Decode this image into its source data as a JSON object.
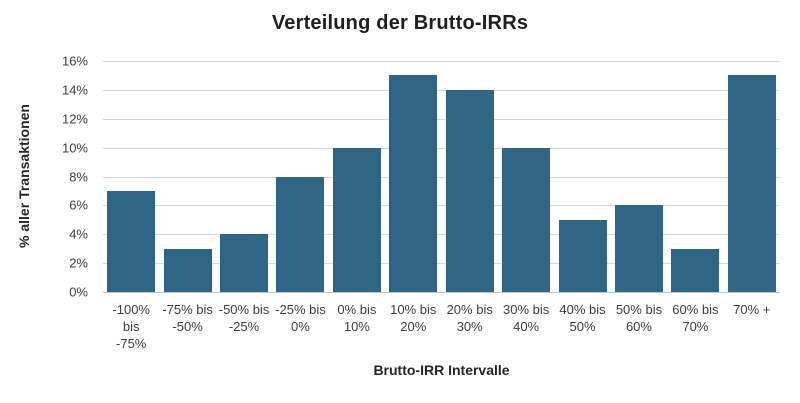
{
  "chart_data": {
    "type": "bar",
    "title": "Verteilung der Brutto-IRRs",
    "xlabel": "Brutto-IRR Intervalle",
    "ylabel": "% aller Transaktionen",
    "categories": [
      "-100% bis -75%",
      "-75% bis -50%",
      "-50% bis -25%",
      "-25% bis 0%",
      "0% bis 10%",
      "10% bis 20%",
      "20% bis 30%",
      "30% bis 40%",
      "40% bis 50%",
      "50% bis 60%",
      "60% bis 70%",
      "70% +"
    ],
    "category_lines": [
      [
        "-100%",
        "bis",
        "-75%"
      ],
      [
        "-75% bis",
        "-50%"
      ],
      [
        "-50% bis",
        "-25%"
      ],
      [
        "-25% bis",
        "0%"
      ],
      [
        "0% bis",
        "10%"
      ],
      [
        "10% bis",
        "20%"
      ],
      [
        "20% bis",
        "30%"
      ],
      [
        "30% bis",
        "40%"
      ],
      [
        "40% bis",
        "50%"
      ],
      [
        "50% bis",
        "60%"
      ],
      [
        "60% bis",
        "70%"
      ],
      [
        "70% +"
      ]
    ],
    "values": [
      7,
      3,
      4,
      8,
      10,
      15,
      14,
      10,
      5,
      6,
      3,
      15
    ],
    "value_unit": "%",
    "ylim": [
      0,
      16
    ],
    "ytick_step": 2,
    "ytick_labels": [
      "0%",
      "2%",
      "4%",
      "6%",
      "8%",
      "10%",
      "12%",
      "14%",
      "16%"
    ],
    "grid": true,
    "legend": "none",
    "bar_color": "#2f6686",
    "gridline_color": "#d9d9d9",
    "axis_line_color": "#c6c6c6",
    "tick_text_color": "#3f3f3f",
    "title_color": "#1f1f1f"
  }
}
